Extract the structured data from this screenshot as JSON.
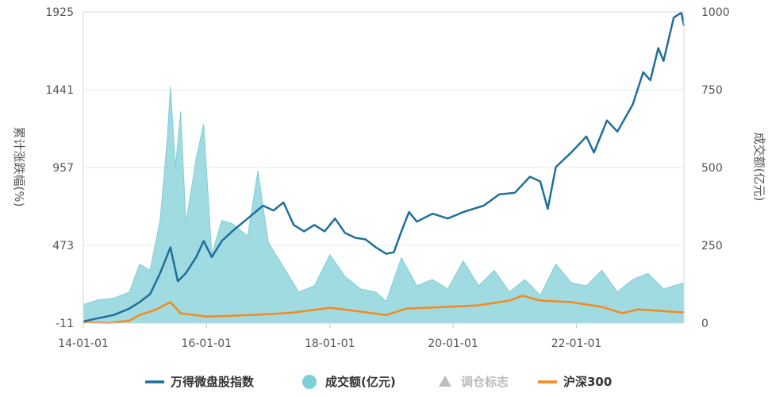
{
  "chart_data": {
    "type": "line",
    "title": "",
    "y_left": {
      "label": "累计涨跌幅(%)",
      "ticks": [
        "1925",
        "1441",
        "957",
        "473",
        "-11"
      ],
      "range": [
        -11,
        1925
      ]
    },
    "y_right": {
      "label": "成交额(亿元)",
      "ticks": [
        "1000",
        "750",
        "500",
        "250",
        "0"
      ],
      "range": [
        0,
        1000
      ]
    },
    "x_axis": {
      "ticks": [
        "14-01-01",
        "16-01-01",
        "18-01-01",
        "20-01-01",
        "22-01-01"
      ],
      "range": [
        "2014-01-01",
        "2023-09-30"
      ]
    },
    "grid": true,
    "legend_position": "bottom",
    "colors": {
      "wind_index": "#1f6f9c",
      "turnover": "#7fcfd6",
      "marker": "#bfbfbf",
      "hs300": "#f5891f"
    },
    "legend": [
      {
        "name": "万得微盘股指数",
        "symbol": "line",
        "color": "#1f6f9c",
        "active": true
      },
      {
        "name": "成交额(亿元)",
        "symbol": "circle",
        "color": "#7fcfd6",
        "active": true
      },
      {
        "name": "调仓标志",
        "symbol": "triangle",
        "color": "#bfbfbf",
        "active": false
      },
      {
        "name": "沪深300",
        "symbol": "line",
        "color": "#f5891f",
        "active": true
      }
    ],
    "series": [
      {
        "name": "万得微盘股指数",
        "axis": "left",
        "points": [
          [
            "2014-01-01",
            0
          ],
          [
            "2014-04-01",
            20
          ],
          [
            "2014-07-01",
            40
          ],
          [
            "2014-10-01",
            80
          ],
          [
            "2014-12-01",
            120
          ],
          [
            "2015-02-01",
            170
          ],
          [
            "2015-04-01",
            300
          ],
          [
            "2015-06-01",
            460
          ],
          [
            "2015-07-15",
            250
          ],
          [
            "2015-09-01",
            300
          ],
          [
            "2015-11-01",
            400
          ],
          [
            "2015-12-15",
            500
          ],
          [
            "2016-02-01",
            400
          ],
          [
            "2016-04-01",
            500
          ],
          [
            "2016-06-01",
            560
          ],
          [
            "2016-09-01",
            640
          ],
          [
            "2016-12-01",
            720
          ],
          [
            "2017-02-01",
            690
          ],
          [
            "2017-04-01",
            740
          ],
          [
            "2017-06-01",
            600
          ],
          [
            "2017-08-01",
            560
          ],
          [
            "2017-10-01",
            600
          ],
          [
            "2017-12-01",
            560
          ],
          [
            "2018-02-01",
            640
          ],
          [
            "2018-04-01",
            550
          ],
          [
            "2018-06-01",
            520
          ],
          [
            "2018-08-01",
            510
          ],
          [
            "2018-10-01",
            460
          ],
          [
            "2018-12-01",
            420
          ],
          [
            "2019-01-15",
            430
          ],
          [
            "2019-03-01",
            560
          ],
          [
            "2019-04-15",
            680
          ],
          [
            "2019-06-01",
            620
          ],
          [
            "2019-09-01",
            670
          ],
          [
            "2019-12-01",
            640
          ],
          [
            "2020-03-01",
            680
          ],
          [
            "2020-07-01",
            720
          ],
          [
            "2020-10-01",
            790
          ],
          [
            "2021-01-01",
            800
          ],
          [
            "2021-04-01",
            900
          ],
          [
            "2021-06-01",
            870
          ],
          [
            "2021-07-15",
            700
          ],
          [
            "2021-09-01",
            960
          ],
          [
            "2021-12-01",
            1050
          ],
          [
            "2022-03-01",
            1150
          ],
          [
            "2022-04-15",
            1050
          ],
          [
            "2022-07-01",
            1250
          ],
          [
            "2022-09-01",
            1180
          ],
          [
            "2022-12-01",
            1350
          ],
          [
            "2023-02-01",
            1550
          ],
          [
            "2023-03-15",
            1500
          ],
          [
            "2023-05-01",
            1700
          ],
          [
            "2023-06-01",
            1620
          ],
          [
            "2023-08-01",
            1890
          ],
          [
            "2023-09-15",
            1920
          ],
          [
            "2023-09-30",
            1840
          ]
        ]
      },
      {
        "name": "成交额(亿元)",
        "axis": "right",
        "points": [
          [
            "2014-01-01",
            60
          ],
          [
            "2014-04-01",
            75
          ],
          [
            "2014-07-01",
            80
          ],
          [
            "2014-10-01",
            100
          ],
          [
            "2014-12-01",
            190
          ],
          [
            "2015-02-01",
            170
          ],
          [
            "2015-04-01",
            330
          ],
          [
            "2015-05-15",
            600
          ],
          [
            "2015-06-01",
            760
          ],
          [
            "2015-07-01",
            500
          ],
          [
            "2015-08-01",
            680
          ],
          [
            "2015-09-01",
            320
          ],
          [
            "2015-11-01",
            530
          ],
          [
            "2015-12-15",
            640
          ],
          [
            "2016-02-01",
            220
          ],
          [
            "2016-04-01",
            330
          ],
          [
            "2016-06-01",
            320
          ],
          [
            "2016-09-01",
            280
          ],
          [
            "2016-11-01",
            490
          ],
          [
            "2017-01-01",
            260
          ],
          [
            "2017-04-01",
            180
          ],
          [
            "2017-07-01",
            100
          ],
          [
            "2017-10-01",
            120
          ],
          [
            "2018-01-01",
            220
          ],
          [
            "2018-04-01",
            150
          ],
          [
            "2018-07-01",
            110
          ],
          [
            "2018-10-01",
            100
          ],
          [
            "2018-12-01",
            70
          ],
          [
            "2019-03-01",
            210
          ],
          [
            "2019-06-01",
            120
          ],
          [
            "2019-09-01",
            140
          ],
          [
            "2019-12-01",
            110
          ],
          [
            "2020-03-01",
            200
          ],
          [
            "2020-06-01",
            120
          ],
          [
            "2020-09-01",
            170
          ],
          [
            "2020-12-01",
            100
          ],
          [
            "2021-03-01",
            140
          ],
          [
            "2021-06-01",
            90
          ],
          [
            "2021-09-01",
            190
          ],
          [
            "2021-12-01",
            130
          ],
          [
            "2022-03-01",
            120
          ],
          [
            "2022-06-01",
            170
          ],
          [
            "2022-09-01",
            100
          ],
          [
            "2022-12-01",
            140
          ],
          [
            "2023-03-01",
            160
          ],
          [
            "2023-06-01",
            110
          ],
          [
            "2023-09-30",
            130
          ]
        ]
      },
      {
        "name": "沪深300",
        "axis": "left",
        "points": [
          [
            "2014-01-01",
            -5
          ],
          [
            "2014-06-01",
            -10
          ],
          [
            "2014-10-01",
            5
          ],
          [
            "2014-12-01",
            40
          ],
          [
            "2015-03-01",
            70
          ],
          [
            "2015-06-01",
            120
          ],
          [
            "2015-08-01",
            50
          ],
          [
            "2016-01-01",
            30
          ],
          [
            "2016-06-01",
            35
          ],
          [
            "2017-01-01",
            45
          ],
          [
            "2017-06-01",
            55
          ],
          [
            "2018-01-01",
            85
          ],
          [
            "2018-06-01",
            65
          ],
          [
            "2018-12-01",
            40
          ],
          [
            "2019-04-01",
            80
          ],
          [
            "2019-12-01",
            90
          ],
          [
            "2020-06-01",
            100
          ],
          [
            "2020-12-01",
            130
          ],
          [
            "2021-02-15",
            160
          ],
          [
            "2021-06-01",
            130
          ],
          [
            "2021-12-01",
            120
          ],
          [
            "2022-06-01",
            90
          ],
          [
            "2022-10-01",
            50
          ],
          [
            "2023-01-01",
            75
          ],
          [
            "2023-09-30",
            55
          ]
        ]
      }
    ]
  }
}
